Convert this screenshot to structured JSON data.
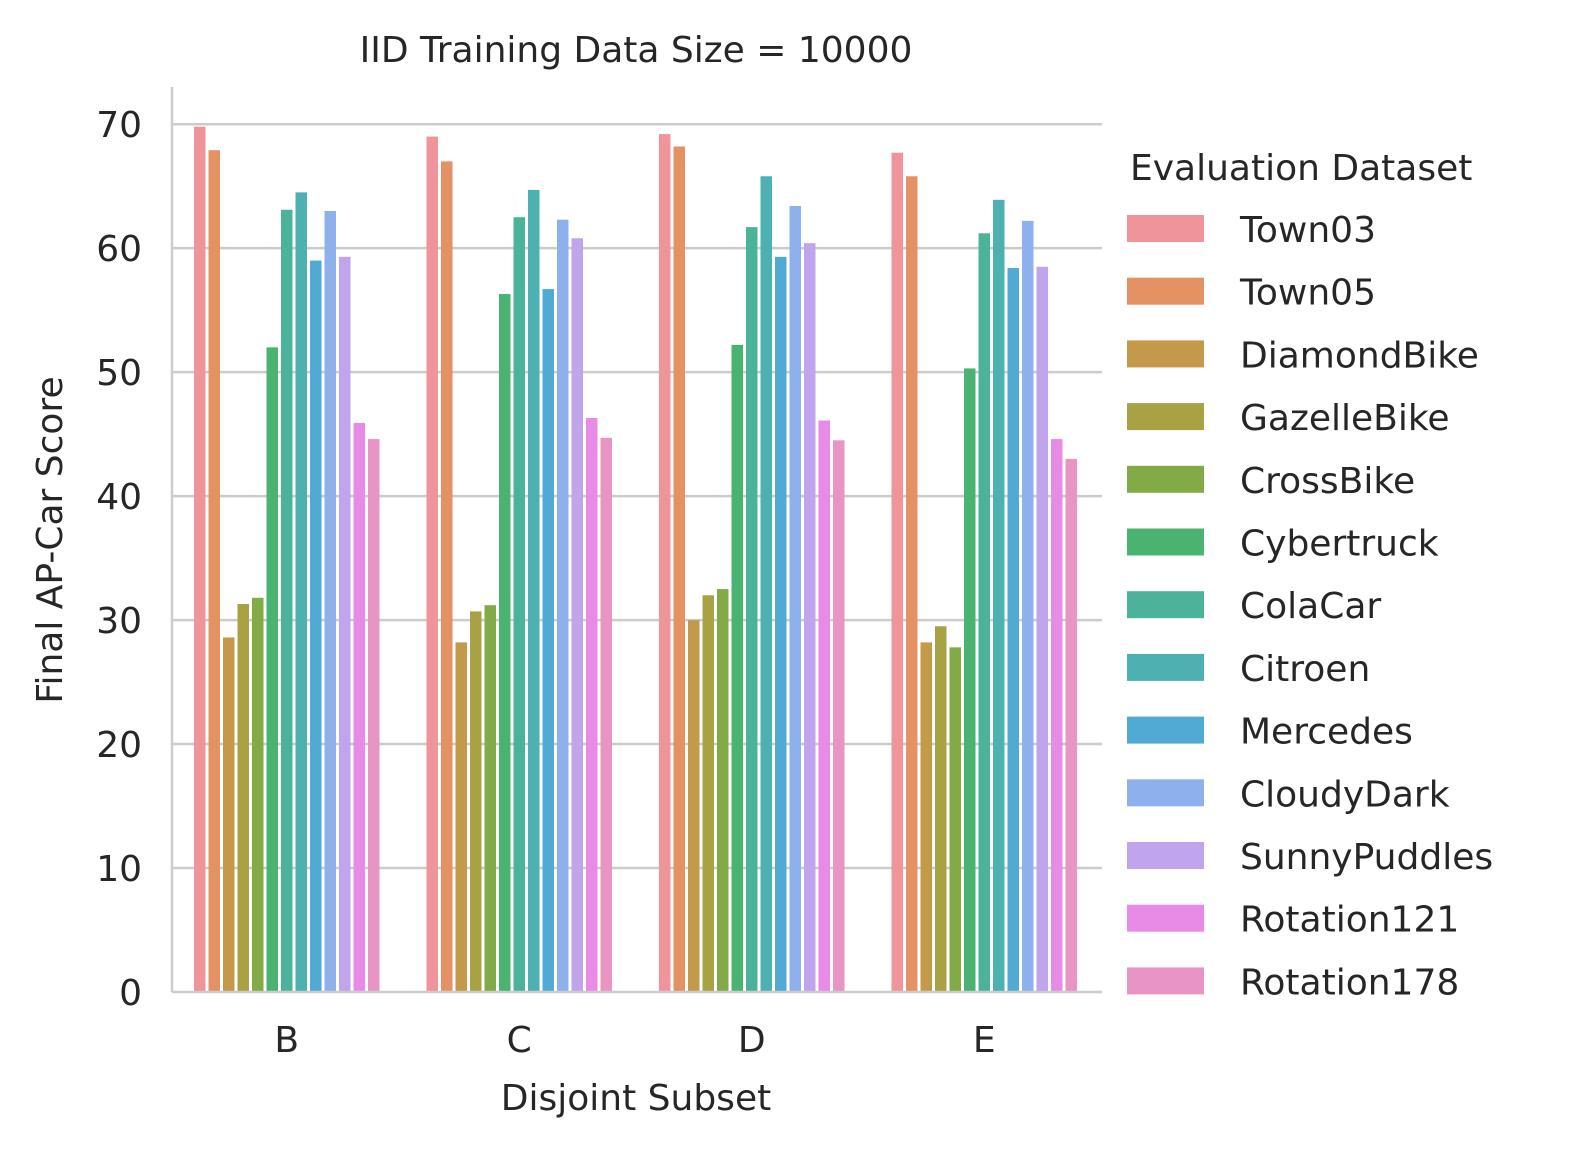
{
  "chart_data": {
    "type": "bar",
    "title": "IID Training Data Size = 10000",
    "xlabel": "Disjoint Subset",
    "ylabel": "Final AP-Car Score",
    "ylim": [
      0,
      73
    ],
    "yticks": [
      0,
      10,
      20,
      30,
      40,
      50,
      60,
      70
    ],
    "grid": "horizontal",
    "categories": [
      "B",
      "C",
      "D",
      "E"
    ],
    "legend": {
      "title": "Evaluation Dataset",
      "position": "right"
    },
    "series": [
      {
        "name": "Town03",
        "color": "#f0949c",
        "values": [
          69.8,
          69.0,
          69.2,
          67.7
        ]
      },
      {
        "name": "Town05",
        "color": "#e49163",
        "values": [
          67.9,
          67.0,
          68.2,
          65.8
        ]
      },
      {
        "name": "DiamondBike",
        "color": "#c49a4a",
        "values": [
          28.6,
          28.2,
          30.0,
          28.2
        ]
      },
      {
        "name": "GazelleBike",
        "color": "#a8a244",
        "values": [
          31.3,
          30.7,
          32.0,
          29.5
        ]
      },
      {
        "name": "CrossBike",
        "color": "#82aa47",
        "values": [
          31.8,
          31.2,
          32.5,
          27.8
        ]
      },
      {
        "name": "Cybertruck",
        "color": "#4bb372",
        "values": [
          52.0,
          56.3,
          52.2,
          50.3
        ]
      },
      {
        "name": "ColaCar",
        "color": "#4bb39a",
        "values": [
          63.1,
          62.5,
          61.7,
          61.2
        ]
      },
      {
        "name": "Citroen",
        "color": "#4cb1b0",
        "values": [
          64.5,
          64.7,
          65.8,
          63.9
        ]
      },
      {
        "name": "Mercedes",
        "color": "#51aad3",
        "values": [
          59.0,
          56.7,
          59.3,
          58.4
        ]
      },
      {
        "name": "CloudyDark",
        "color": "#8eb0ec",
        "values": [
          63.0,
          62.3,
          63.4,
          62.2
        ]
      },
      {
        "name": "SunnyPuddles",
        "color": "#c0a4ec",
        "values": [
          59.3,
          60.8,
          60.4,
          58.5
        ]
      },
      {
        "name": "Rotation121",
        "color": "#e88be6",
        "values": [
          45.9,
          46.3,
          46.1,
          44.6
        ]
      },
      {
        "name": "Rotation178",
        "color": "#e894c4",
        "values": [
          44.6,
          44.7,
          44.5,
          43.0
        ]
      }
    ]
  }
}
